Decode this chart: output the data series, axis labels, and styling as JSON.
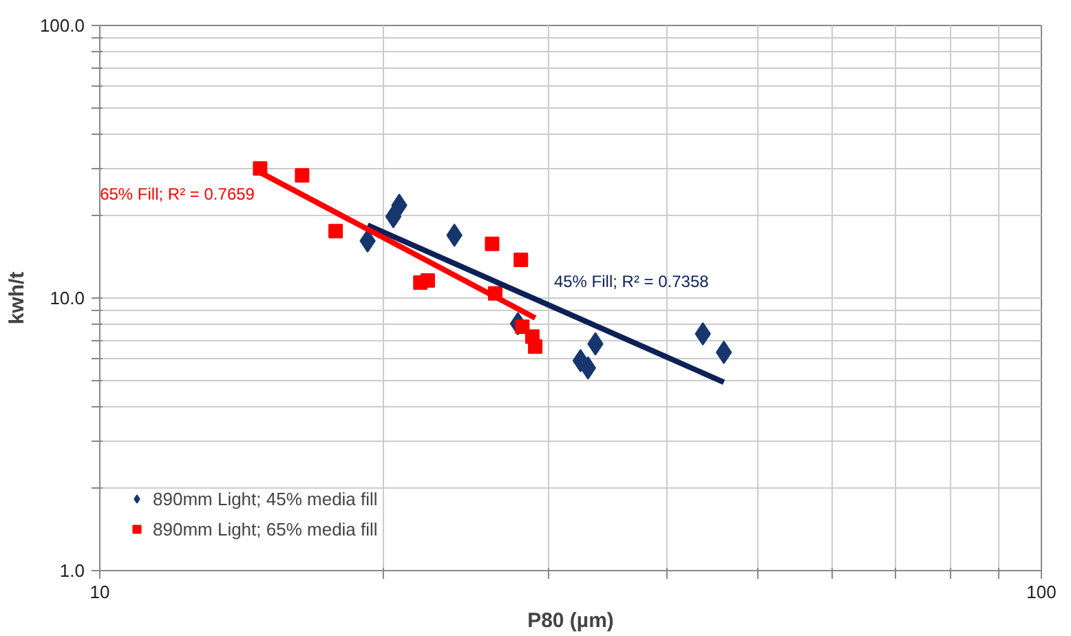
{
  "chart_data": {
    "type": "scatter",
    "xlabel": "P80 (µm)",
    "ylabel": "kwh/t",
    "log": "xy",
    "xlim": [
      10,
      100
    ],
    "ylim": [
      1,
      100
    ],
    "xticks": [
      10,
      {
        "value": 20,
        "label": null
      },
      {
        "value": 30,
        "label": null
      },
      {
        "value": 40,
        "label": null
      },
      {
        "value": 50,
        "label": null
      },
      {
        "value": 60,
        "label": null
      },
      {
        "value": 70,
        "label": null
      },
      {
        "value": 80,
        "label": null
      },
      {
        "value": 90,
        "label": null
      },
      100
    ],
    "yticks": [
      {
        "value": 1,
        "label": "1.0"
      },
      {
        "value": 2,
        "label": null
      },
      {
        "value": 3,
        "label": null
      },
      {
        "value": 4,
        "label": null
      },
      {
        "value": 5,
        "label": null
      },
      {
        "value": 6,
        "label": null
      },
      {
        "value": 7,
        "label": null
      },
      {
        "value": 8,
        "label": null
      },
      {
        "value": 9,
        "label": null
      },
      {
        "value": 10,
        "label": "10.0"
      },
      {
        "value": 20,
        "label": null
      },
      {
        "value": 30,
        "label": null
      },
      {
        "value": 40,
        "label": null
      },
      {
        "value": 50,
        "label": null
      },
      {
        "value": 60,
        "label": null
      },
      {
        "value": 70,
        "label": null
      },
      {
        "value": 80,
        "label": null
      },
      {
        "value": 90,
        "label": null
      },
      {
        "value": 100,
        "label": "100.0"
      }
    ],
    "grid": true,
    "legend": "bottom left",
    "series": [
      {
        "name": "890mm Light; 45% media fill",
        "marker": "diamond",
        "color": "#17366e",
        "x": [
          19.25,
          20.5,
          20.8,
          23.8,
          27.8,
          32.4,
          33.0,
          33.6,
          43.7,
          46.0
        ],
        "values": [
          16.2,
          19.9,
          21.9,
          17.0,
          8.05,
          5.89,
          5.54,
          6.79,
          7.39,
          6.32
        ]
      },
      {
        "name": "890mm Light; 65% media fill",
        "marker": "square",
        "color": "#ff0000",
        "x": [
          14.8,
          16.4,
          17.8,
          21.9,
          22.3,
          26.1,
          28.0,
          26.3,
          28.1,
          28.8,
          29.0
        ],
        "values": [
          29.9,
          28.2,
          17.6,
          11.4,
          11.6,
          15.8,
          13.8,
          10.4,
          7.85,
          7.22,
          6.64
        ]
      },
      {
        "type": "line",
        "color": "#0d2157",
        "x": [
          19.25,
          46.0
        ],
        "values": [
          18.5,
          4.91
        ]
      },
      {
        "type": "line",
        "color": "#ff0000",
        "x": [
          14.8,
          29.0
        ],
        "values": [
          28.9,
          8.45
        ]
      }
    ],
    "annotations": [
      "65% Fill; R² = 0.7659",
      "45% Fill; R² = 0.7358"
    ]
  }
}
